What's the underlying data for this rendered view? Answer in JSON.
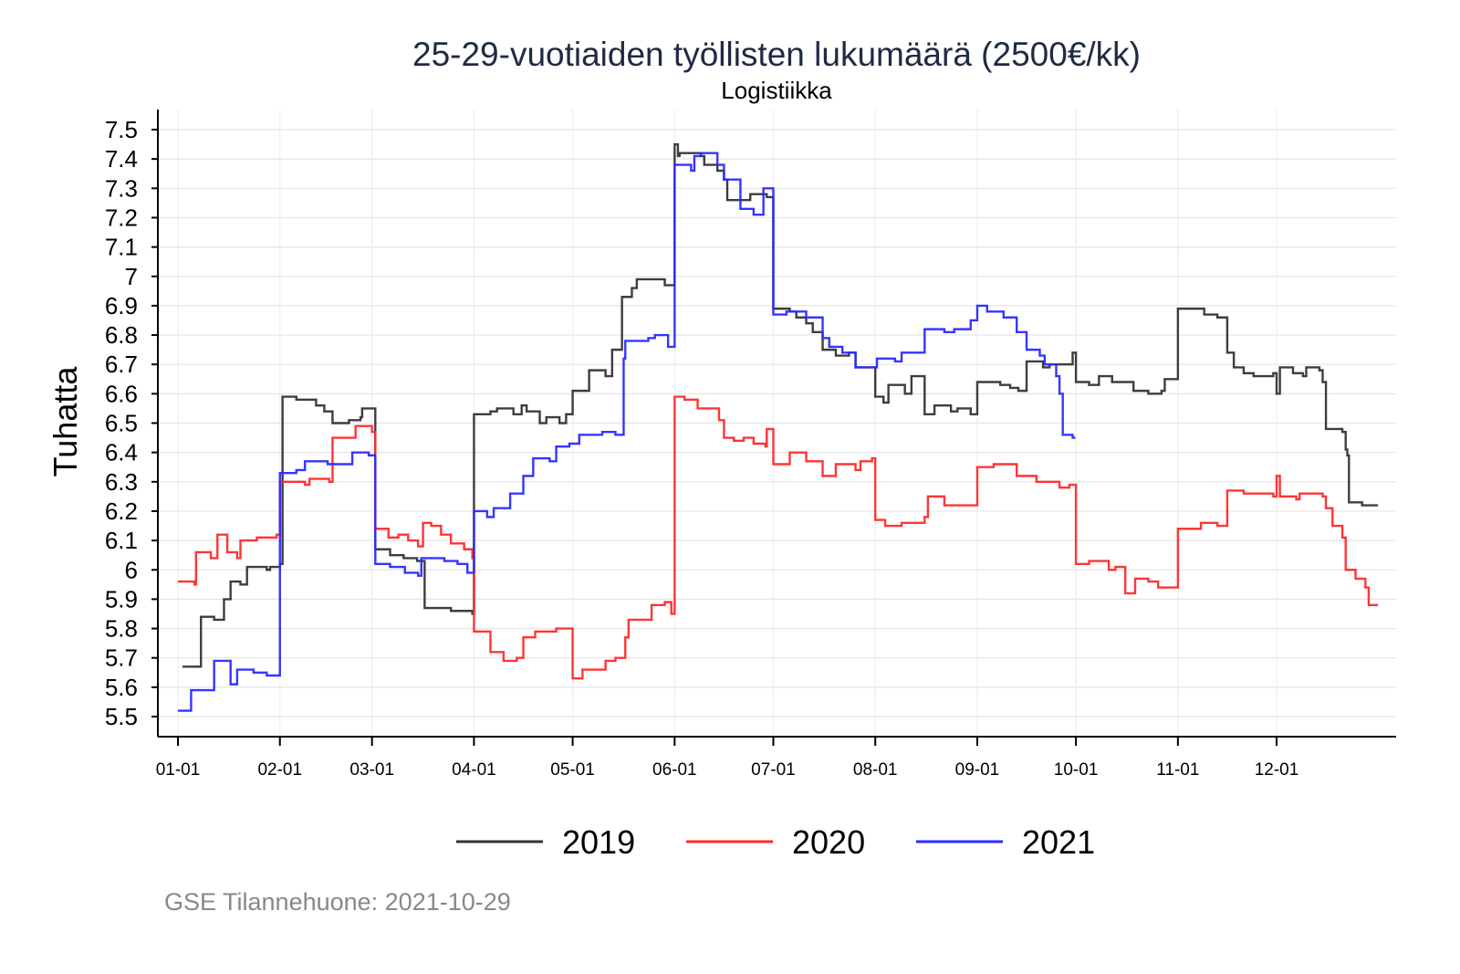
{
  "chart_data": {
    "type": "line",
    "title": "25-29-vuotiaiden työllisten lukumäärä (2500€/kk)",
    "subtitle": "Logistiikka",
    "ylabel": "Tuhatta",
    "xlabel": "",
    "caption": "GSE Tilannehuone: 2021-10-29",
    "x_unit": "day of year (step-after)",
    "xlim": [
      0,
      365
    ],
    "ylim": [
      5.5,
      7.5
    ],
    "grid": true,
    "legend_position": "bottom",
    "yticks": [
      5.5,
      5.6,
      5.7,
      5.8,
      5.9,
      6,
      6.1,
      6.2,
      6.3,
      6.4,
      6.5,
      6.6,
      6.7,
      6.8,
      6.9,
      7,
      7.1,
      7.2,
      7.3,
      7.4,
      7.5
    ],
    "ytick_labels": [
      "5.5",
      "5.6",
      "5.7",
      "5.8",
      "5.9",
      "6",
      "6.1",
      "6.2",
      "6.3",
      "6.4",
      "6.5",
      "6.6",
      "6.7",
      "6.8",
      "6.9",
      "7",
      "7.1",
      "7.2",
      "7.3",
      "7.4",
      "7.5"
    ],
    "xticks": [
      0,
      31,
      59,
      90,
      120,
      151,
      181,
      212,
      243,
      273,
      304,
      334
    ],
    "xtick_labels": [
      "01-01",
      "02-01",
      "03-01",
      "04-01",
      "05-01",
      "06-01",
      "07-01",
      "08-01",
      "09-01",
      "10-01",
      "11-01",
      "12-01"
    ],
    "series": [
      {
        "name": "2019",
        "color": "#333333",
        "points": [
          [
            1.4,
            5.67
          ],
          [
            7,
            5.84
          ],
          [
            11,
            5.83
          ],
          [
            14,
            5.9
          ],
          [
            16,
            5.96
          ],
          [
            19,
            5.95
          ],
          [
            21,
            6.01
          ],
          [
            27,
            6.0
          ],
          [
            28,
            6.01
          ],
          [
            31,
            6.02
          ],
          [
            31.8,
            6.59
          ],
          [
            36,
            6.58
          ],
          [
            42,
            6.56
          ],
          [
            44.5,
            6.54
          ],
          [
            47,
            6.5
          ],
          [
            52,
            6.51
          ],
          [
            55.5,
            6.52
          ],
          [
            56,
            6.55
          ],
          [
            60,
            6.07
          ],
          [
            64.5,
            6.05
          ],
          [
            68.6,
            6.04
          ],
          [
            72.7,
            6.03
          ],
          [
            75,
            5.87
          ],
          [
            83,
            5.86
          ],
          [
            89.5,
            5.85
          ],
          [
            90,
            6.53
          ],
          [
            95,
            6.54
          ],
          [
            97,
            6.55
          ],
          [
            102,
            6.53
          ],
          [
            104.5,
            6.56
          ],
          [
            106,
            6.54
          ],
          [
            110,
            6.5
          ],
          [
            112,
            6.52
          ],
          [
            116,
            6.5
          ],
          [
            118,
            6.53
          ],
          [
            120,
            6.61
          ],
          [
            125,
            6.68
          ],
          [
            130,
            6.66
          ],
          [
            132,
            6.75
          ],
          [
            135,
            6.93
          ],
          [
            138,
            6.96
          ],
          [
            139.5,
            6.99
          ],
          [
            148,
            6.97
          ],
          [
            151,
            7.45
          ],
          [
            152,
            7.41
          ],
          [
            152.5,
            7.42
          ],
          [
            159,
            7.41
          ],
          [
            160,
            7.38
          ],
          [
            164,
            7.36
          ],
          [
            166,
            7.33
          ],
          [
            167,
            7.26
          ],
          [
            171,
            7.26
          ],
          [
            174,
            7.28
          ],
          [
            179,
            7.27
          ],
          [
            181,
            6.89
          ],
          [
            186,
            6.88
          ],
          [
            188,
            6.86
          ],
          [
            191,
            6.84
          ],
          [
            193,
            6.81
          ],
          [
            196,
            6.75
          ],
          [
            200,
            6.73
          ],
          [
            204,
            6.74
          ],
          [
            206,
            6.69
          ],
          [
            212,
            6.59
          ],
          [
            214.5,
            6.57
          ],
          [
            216,
            6.63
          ],
          [
            221,
            6.6
          ],
          [
            223,
            6.66
          ],
          [
            227,
            6.53
          ],
          [
            230,
            6.56
          ],
          [
            235,
            6.54
          ],
          [
            237,
            6.55
          ],
          [
            241,
            6.53
          ],
          [
            243,
            6.64
          ],
          [
            250,
            6.63
          ],
          [
            253,
            6.62
          ],
          [
            255.5,
            6.61
          ],
          [
            258,
            6.71
          ],
          [
            263,
            6.69
          ],
          [
            265,
            6.7
          ],
          [
            272,
            6.74
          ],
          [
            273,
            6.64
          ],
          [
            277,
            6.63
          ],
          [
            280,
            6.66
          ],
          [
            284,
            6.64
          ],
          [
            290.5,
            6.61
          ],
          [
            295,
            6.6
          ],
          [
            299,
            6.61
          ],
          [
            300,
            6.65
          ],
          [
            304,
            6.89
          ],
          [
            307,
            6.89
          ],
          [
            312,
            6.87
          ],
          [
            316,
            6.86
          ],
          [
            319,
            6.74
          ],
          [
            321,
            6.69
          ],
          [
            324,
            6.67
          ],
          [
            327,
            6.66
          ],
          [
            333,
            6.67
          ],
          [
            334,
            6.6
          ],
          [
            335,
            6.69
          ],
          [
            339,
            6.67
          ],
          [
            342,
            6.66
          ],
          [
            343,
            6.69
          ],
          [
            347,
            6.68
          ],
          [
            348,
            6.64
          ],
          [
            349,
            6.48
          ],
          [
            354,
            6.47
          ],
          [
            355,
            6.41
          ],
          [
            355.5,
            6.39
          ],
          [
            356,
            6.23
          ],
          [
            360,
            6.22
          ],
          [
            364,
            6.22
          ]
        ]
      },
      {
        "name": "2020",
        "color": "#ff2a2a",
        "points": [
          [
            0,
            5.96
          ],
          [
            5,
            5.95
          ],
          [
            5.5,
            6.06
          ],
          [
            10,
            6.04
          ],
          [
            12,
            6.12
          ],
          [
            15,
            6.06
          ],
          [
            18,
            6.04
          ],
          [
            19,
            6.1
          ],
          [
            24,
            6.11
          ],
          [
            30,
            6.12
          ],
          [
            31,
            6.3
          ],
          [
            38.6,
            6.29
          ],
          [
            40,
            6.31
          ],
          [
            46,
            6.3
          ],
          [
            47,
            6.45
          ],
          [
            54,
            6.49
          ],
          [
            59,
            6.47
          ],
          [
            60,
            6.14
          ],
          [
            64,
            6.11
          ],
          [
            67,
            6.12
          ],
          [
            70,
            6.1
          ],
          [
            73,
            6.08
          ],
          [
            74.5,
            6.16
          ],
          [
            77,
            6.15
          ],
          [
            80,
            6.12
          ],
          [
            83,
            6.09
          ],
          [
            87,
            6.07
          ],
          [
            89.5,
            6.04
          ],
          [
            90,
            5.79
          ],
          [
            95,
            5.72
          ],
          [
            99,
            5.69
          ],
          [
            103,
            5.7
          ],
          [
            105,
            5.77
          ],
          [
            108.6,
            5.79
          ],
          [
            115,
            5.8
          ],
          [
            120,
            5.63
          ],
          [
            123,
            5.66
          ],
          [
            130,
            5.69
          ],
          [
            133,
            5.7
          ],
          [
            136,
            5.77
          ],
          [
            137,
            5.83
          ],
          [
            144,
            5.88
          ],
          [
            148,
            5.89
          ],
          [
            150,
            5.85
          ],
          [
            151,
            6.59
          ],
          [
            154,
            6.58
          ],
          [
            158,
            6.55
          ],
          [
            164.5,
            6.51
          ],
          [
            166,
            6.45
          ],
          [
            169,
            6.44
          ],
          [
            172,
            6.45
          ],
          [
            175,
            6.43
          ],
          [
            178.6,
            6.42
          ],
          [
            179,
            6.48
          ],
          [
            181,
            6.36
          ],
          [
            186,
            6.4
          ],
          [
            191,
            6.37
          ],
          [
            196,
            6.32
          ],
          [
            200,
            6.36
          ],
          [
            204,
            6.36
          ],
          [
            206,
            6.34
          ],
          [
            207.5,
            6.37
          ],
          [
            211,
            6.38
          ],
          [
            212,
            6.17
          ],
          [
            215,
            6.15
          ],
          [
            220,
            6.16
          ],
          [
            227,
            6.18
          ],
          [
            228,
            6.25
          ],
          [
            233,
            6.22
          ],
          [
            238,
            6.22
          ],
          [
            243,
            6.35
          ],
          [
            248,
            6.36
          ],
          [
            255,
            6.32
          ],
          [
            261,
            6.3
          ],
          [
            268,
            6.28
          ],
          [
            271,
            6.29
          ],
          [
            273,
            6.02
          ],
          [
            277,
            6.03
          ],
          [
            283,
            6.0
          ],
          [
            285,
            6.01
          ],
          [
            288,
            5.92
          ],
          [
            291,
            5.97
          ],
          [
            295,
            5.96
          ],
          [
            298,
            5.94
          ],
          [
            304,
            6.14
          ],
          [
            311,
            6.16
          ],
          [
            316,
            6.15
          ],
          [
            319,
            6.27
          ],
          [
            324,
            6.26
          ],
          [
            333,
            6.25
          ],
          [
            334,
            6.32
          ],
          [
            335,
            6.25
          ],
          [
            340,
            6.24
          ],
          [
            341,
            6.26
          ],
          [
            348,
            6.25
          ],
          [
            349,
            6.21
          ],
          [
            351,
            6.15
          ],
          [
            354,
            6.11
          ],
          [
            355,
            6.0
          ],
          [
            358,
            5.97
          ],
          [
            361,
            5.94
          ],
          [
            362,
            5.88
          ],
          [
            364,
            5.88
          ]
        ]
      },
      {
        "name": "2021",
        "color": "#2a2aff",
        "points": [
          [
            0,
            5.52
          ],
          [
            4,
            5.59
          ],
          [
            11,
            5.69
          ],
          [
            16,
            5.61
          ],
          [
            18,
            5.66
          ],
          [
            23,
            5.65
          ],
          [
            27,
            5.64
          ],
          [
            31,
            6.33
          ],
          [
            36,
            6.34
          ],
          [
            38.6,
            6.37
          ],
          [
            45.5,
            6.36
          ],
          [
            53,
            6.4
          ],
          [
            58,
            6.39
          ],
          [
            60,
            6.02
          ],
          [
            64.5,
            6.01
          ],
          [
            69,
            5.99
          ],
          [
            73,
            5.98
          ],
          [
            74,
            6.04
          ],
          [
            81,
            6.03
          ],
          [
            85,
            6.02
          ],
          [
            88,
            5.99
          ],
          [
            90,
            6.2
          ],
          [
            94,
            6.18
          ],
          [
            96,
            6.21
          ],
          [
            101,
            6.26
          ],
          [
            105,
            6.32
          ],
          [
            108,
            6.38
          ],
          [
            113,
            6.37
          ],
          [
            115,
            6.42
          ],
          [
            119,
            6.43
          ],
          [
            122,
            6.46
          ],
          [
            129,
            6.47
          ],
          [
            133,
            6.46
          ],
          [
            135.5,
            6.72
          ],
          [
            136,
            6.78
          ],
          [
            143,
            6.79
          ],
          [
            145,
            6.8
          ],
          [
            149,
            6.76
          ],
          [
            151,
            7.38
          ],
          [
            156,
            7.36
          ],
          [
            157,
            7.41
          ],
          [
            159,
            7.42
          ],
          [
            164,
            7.38
          ],
          [
            166,
            7.33
          ],
          [
            171,
            7.23
          ],
          [
            175,
            7.21
          ],
          [
            178,
            7.3
          ],
          [
            181,
            6.87
          ],
          [
            185,
            6.88
          ],
          [
            191,
            6.86
          ],
          [
            196,
            6.79
          ],
          [
            198,
            6.76
          ],
          [
            202,
            6.74
          ],
          [
            204,
            6.74
          ],
          [
            206,
            6.69
          ],
          [
            212.5,
            6.72
          ],
          [
            218,
            6.71
          ],
          [
            220,
            6.74
          ],
          [
            227,
            6.82
          ],
          [
            233,
            6.81
          ],
          [
            236,
            6.82
          ],
          [
            241,
            6.85
          ],
          [
            243,
            6.9
          ],
          [
            246,
            6.88
          ],
          [
            251,
            6.86
          ],
          [
            255,
            6.81
          ],
          [
            258,
            6.75
          ],
          [
            262,
            6.73
          ],
          [
            263.5,
            6.7
          ],
          [
            267,
            6.66
          ],
          [
            268,
            6.6
          ],
          [
            269,
            6.46
          ],
          [
            272,
            6.45
          ]
        ]
      }
    ]
  }
}
